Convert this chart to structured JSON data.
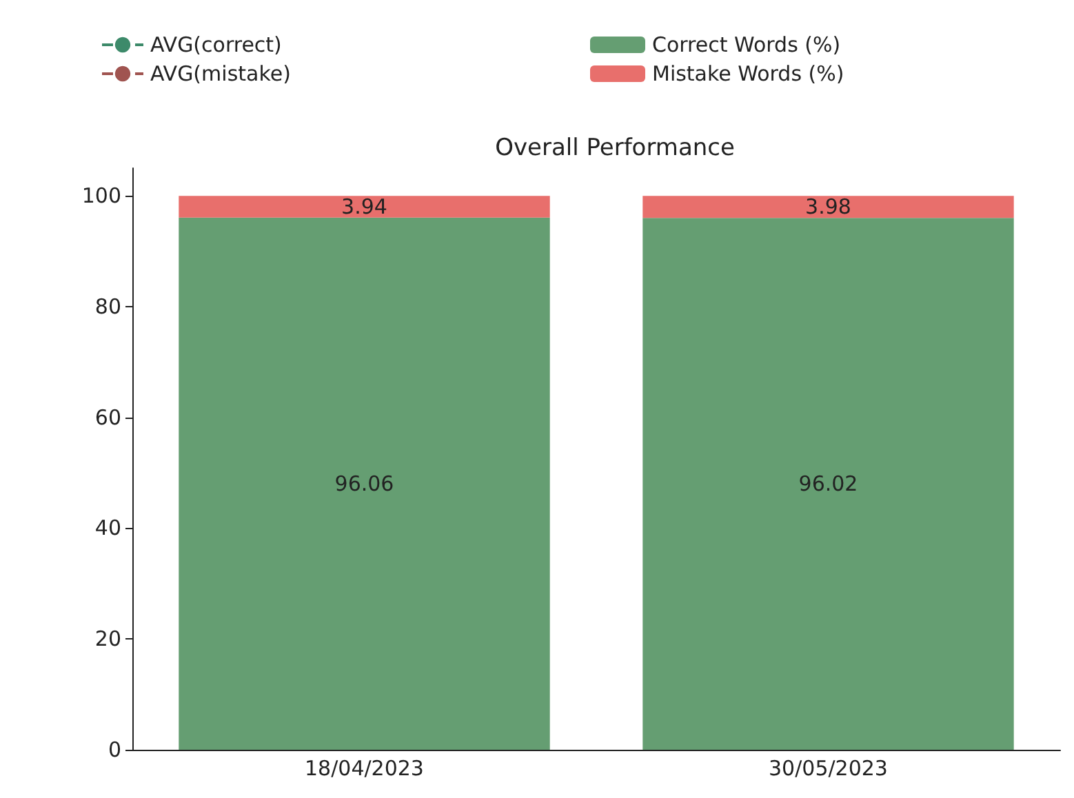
{
  "chart_data": {
    "type": "bar",
    "title": "Overall Performance",
    "categories": [
      "18/04/2023",
      "30/05/2023"
    ],
    "stacked": true,
    "data_labels": true,
    "legend": "top",
    "grid": false,
    "ylim": [
      0,
      105
    ],
    "yticks": [
      0,
      20,
      40,
      60,
      80,
      100
    ],
    "series": [
      {
        "name": "Correct Words (%)",
        "color": "#659e72",
        "values": [
          96.06,
          96.02
        ]
      },
      {
        "name": "Mistake Words (%)",
        "color": "#e86f6c",
        "values": [
          3.94,
          3.98
        ]
      },
      {
        "name": "AVG(correct)",
        "type": "line",
        "line_style": "dashed",
        "color": "#3d8a6a",
        "values": [
          null,
          null
        ]
      },
      {
        "name": "AVG(mistake)",
        "type": "line",
        "line_style": "dashed",
        "color": "#a05450",
        "values": [
          null,
          null
        ]
      }
    ]
  }
}
